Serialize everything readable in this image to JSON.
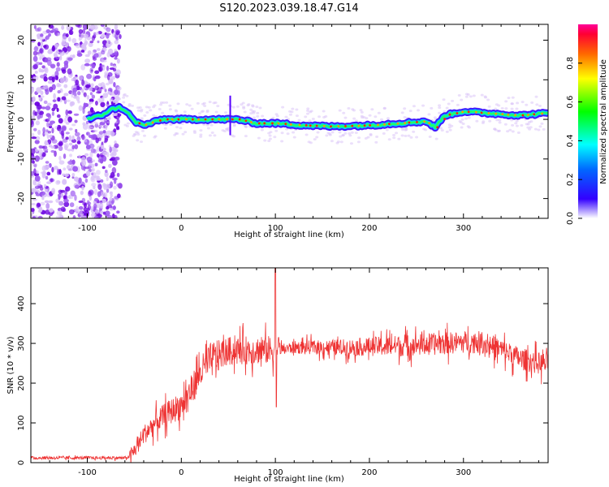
{
  "title": "S120.2023.039.18.47.G14",
  "chart_data": [
    {
      "type": "heatmap",
      "xlabel": "Height of straight line (km)",
      "ylabel": "Frequency (Hz)",
      "xlim": [
        -160,
        390
      ],
      "ylim": [
        -25,
        24
      ],
      "xticks": [
        -100,
        0,
        100,
        200,
        300
      ],
      "yticks": [
        -20,
        -10,
        0,
        10,
        20
      ],
      "colorbar": {
        "label": "Normalized spectral amplitude",
        "range": [
          0,
          1
        ],
        "ticks": [
          0.0,
          0.2,
          0.4,
          0.6,
          0.8
        ]
      },
      "ridge": {
        "description_points_x": [
          -100,
          -85,
          -75,
          -65,
          -58,
          -50,
          -40,
          -20,
          0,
          40,
          60,
          80,
          100,
          130,
          160,
          200,
          230,
          260,
          270,
          280,
          300,
          330,
          360,
          385
        ],
        "frequency_hz": [
          0,
          1,
          2.5,
          3,
          2,
          -0.5,
          -1.5,
          0,
          0,
          0,
          0,
          -1,
          -1,
          -1.5,
          -1.8,
          -1.5,
          -1,
          -0.5,
          -2,
          1,
          2,
          1.5,
          1,
          1.5
        ]
      }
    },
    {
      "type": "line",
      "xlabel": "Height of straight line (km)",
      "ylabel": "SNR (10 * v/v)",
      "xlim": [
        -160,
        390
      ],
      "ylim": [
        0,
        490
      ],
      "xticks": [
        -100,
        0,
        100,
        200,
        300
      ],
      "yticks": [
        0,
        100,
        200,
        300,
        400
      ],
      "series": [
        {
          "color": "#ee3333",
          "x": [
            -160,
            -120,
            -80,
            -60,
            -55,
            -50,
            -40,
            -30,
            -20,
            -10,
            0,
            10,
            20,
            30,
            40,
            50,
            60,
            70,
            80,
            90,
            95,
            100,
            105,
            110,
            120,
            140,
            160,
            180,
            200,
            220,
            240,
            260,
            280,
            300,
            310,
            320,
            340,
            360,
            380,
            390
          ],
          "y": [
            12,
            12,
            12,
            12,
            15,
            30,
            70,
            95,
            115,
            130,
            145,
            180,
            225,
            255,
            272,
            280,
            282,
            283,
            283,
            283,
            284,
            286,
            285,
            285,
            290,
            290,
            290,
            290,
            292,
            293,
            295,
            297,
            300,
            303,
            303,
            303,
            285,
            262,
            250,
            248
          ]
        }
      ]
    }
  ]
}
